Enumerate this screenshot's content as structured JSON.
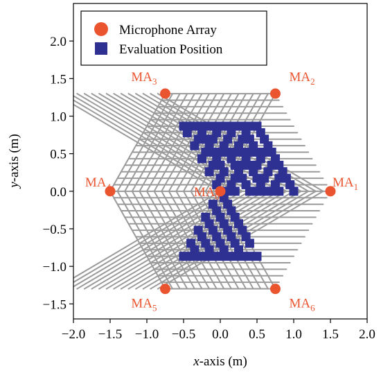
{
  "chart_data": {
    "type": "scatter",
    "xlabel": {
      "italic": "x",
      "rest": "-axis (m)"
    },
    "ylabel": {
      "italic": "y",
      "rest": "-axis (m)"
    },
    "xlim": [
      -2.0,
      2.0
    ],
    "ylim": [
      -1.7,
      2.5
    ],
    "xticks": [
      -2.0,
      -1.5,
      -1.0,
      -0.5,
      0.0,
      0.5,
      1.0,
      1.5,
      2.0
    ],
    "yticks": [
      -1.5,
      -1.0,
      -0.5,
      0.0,
      0.5,
      1.0,
      1.5,
      2.0
    ],
    "tick_labels_x": [
      "−2.0",
      "−1.5",
      "−1.0",
      "−0.5",
      "0.0",
      "0.5",
      "1.0",
      "1.5",
      "2.0"
    ],
    "tick_labels_y": [
      "−1.5",
      "−1.0",
      "−0.5",
      "0.0",
      "0.5",
      "1.0",
      "1.5",
      "2.0"
    ],
    "grid": {
      "type": "triangular-hexagon",
      "spacing": 0.1,
      "extent": 1.5
    },
    "legend": {
      "placement": "upper-left",
      "entries": [
        {
          "label": "Microphone Array",
          "marker": "circle",
          "color": "#ea5530"
        },
        {
          "label": "Evaluation Position",
          "marker": "square",
          "color": "#2e3192"
        }
      ]
    },
    "series": [
      {
        "name": "Microphone Array",
        "marker": "circle",
        "color": "#ea5530",
        "points": [
          {
            "x": 1.5,
            "y": 0.0,
            "label": "MA",
            "sub": "1",
            "anchor": "right"
          },
          {
            "x": 0.75,
            "y": 1.3,
            "label": "MA",
            "sub": "2",
            "anchor": "upper-right"
          },
          {
            "x": -0.75,
            "y": 1.3,
            "label": "MA",
            "sub": "3",
            "anchor": "upper-left"
          },
          {
            "x": -1.5,
            "y": 0.0,
            "label": "MA",
            "sub": "4",
            "anchor": "left"
          },
          {
            "x": -0.75,
            "y": -1.3,
            "label": "MA",
            "sub": "5",
            "anchor": "lower-left"
          },
          {
            "x": 0.75,
            "y": -1.3,
            "label": "MA",
            "sub": "6",
            "anchor": "lower-right"
          },
          {
            "x": 0.0,
            "y": 0.0,
            "label": "MA",
            "sub": "0",
            "anchor": "left"
          }
        ]
      },
      {
        "name": "Evaluation Position",
        "marker": "square",
        "color": "#2e3192",
        "points": [
          {
            "x": -0.5,
            "y": 0.866
          },
          {
            "x": -0.4,
            "y": 0.866
          },
          {
            "x": -0.3,
            "y": 0.866
          },
          {
            "x": -0.2,
            "y": 0.866
          },
          {
            "x": -0.1,
            "y": 0.866
          },
          {
            "x": 0.0,
            "y": 0.866
          },
          {
            "x": 0.1,
            "y": 0.866
          },
          {
            "x": 0.2,
            "y": 0.866
          },
          {
            "x": 0.3,
            "y": 0.866
          },
          {
            "x": 0.4,
            "y": 0.866
          },
          {
            "x": 0.5,
            "y": 0.866
          },
          {
            "x": -0.45,
            "y": 0.779
          },
          {
            "x": -0.25,
            "y": 0.779
          },
          {
            "x": -0.05,
            "y": 0.779
          },
          {
            "x": 0.15,
            "y": 0.779
          },
          {
            "x": 0.35,
            "y": 0.779
          },
          {
            "x": 0.55,
            "y": 0.779
          },
          {
            "x": -0.3,
            "y": 0.693
          },
          {
            "x": -0.2,
            "y": 0.693
          },
          {
            "x": -0.1,
            "y": 0.693
          },
          {
            "x": 0.1,
            "y": 0.693
          },
          {
            "x": 0.3,
            "y": 0.693
          },
          {
            "x": 0.4,
            "y": 0.693
          },
          {
            "x": 0.6,
            "y": 0.693
          },
          {
            "x": -0.35,
            "y": 0.606
          },
          {
            "x": -0.15,
            "y": 0.606
          },
          {
            "x": 0.05,
            "y": 0.606
          },
          {
            "x": 0.25,
            "y": 0.606
          },
          {
            "x": 0.45,
            "y": 0.606
          },
          {
            "x": 0.65,
            "y": 0.606
          },
          {
            "x": -0.2,
            "y": 0.52
          },
          {
            "x": -0.1,
            "y": 0.52
          },
          {
            "x": 0.0,
            "y": 0.52
          },
          {
            "x": 0.1,
            "y": 0.52
          },
          {
            "x": 0.2,
            "y": 0.52
          },
          {
            "x": 0.3,
            "y": 0.52
          },
          {
            "x": 0.4,
            "y": 0.52
          },
          {
            "x": 0.5,
            "y": 0.52
          },
          {
            "x": 0.6,
            "y": 0.52
          },
          {
            "x": 0.7,
            "y": 0.52
          },
          {
            "x": -0.25,
            "y": 0.433
          },
          {
            "x": -0.05,
            "y": 0.433
          },
          {
            "x": 0.15,
            "y": 0.433
          },
          {
            "x": 0.35,
            "y": 0.433
          },
          {
            "x": 0.55,
            "y": 0.433
          },
          {
            "x": 0.75,
            "y": 0.433
          },
          {
            "x": -0.1,
            "y": 0.346
          },
          {
            "x": 0.0,
            "y": 0.346
          },
          {
            "x": 0.2,
            "y": 0.346
          },
          {
            "x": 0.3,
            "y": 0.346
          },
          {
            "x": 0.4,
            "y": 0.346
          },
          {
            "x": 0.5,
            "y": 0.346
          },
          {
            "x": 0.7,
            "y": 0.346
          },
          {
            "x": 0.8,
            "y": 0.346
          },
          {
            "x": -0.15,
            "y": 0.26
          },
          {
            "x": 0.05,
            "y": 0.26
          },
          {
            "x": 0.25,
            "y": 0.26
          },
          {
            "x": 0.45,
            "y": 0.26
          },
          {
            "x": 0.65,
            "y": 0.26
          },
          {
            "x": 0.85,
            "y": 0.26
          },
          {
            "x": 0.0,
            "y": 0.173
          },
          {
            "x": 0.2,
            "y": 0.173
          },
          {
            "x": 0.3,
            "y": 0.173
          },
          {
            "x": 0.5,
            "y": 0.173
          },
          {
            "x": 0.6,
            "y": 0.173
          },
          {
            "x": 0.8,
            "y": 0.173
          },
          {
            "x": 0.9,
            "y": 0.173
          },
          {
            "x": -0.05,
            "y": 0.087
          },
          {
            "x": 0.15,
            "y": 0.087
          },
          {
            "x": 0.35,
            "y": 0.087
          },
          {
            "x": 0.55,
            "y": 0.087
          },
          {
            "x": 0.75,
            "y": 0.087
          },
          {
            "x": 0.95,
            "y": 0.087
          },
          {
            "x": 0.1,
            "y": 0.0
          },
          {
            "x": 0.2,
            "y": 0.0
          },
          {
            "x": 0.4,
            "y": 0.0
          },
          {
            "x": 0.5,
            "y": 0.0
          },
          {
            "x": 0.6,
            "y": 0.0
          },
          {
            "x": 0.7,
            "y": 0.0
          },
          {
            "x": 0.8,
            "y": 0.0
          },
          {
            "x": 1.0,
            "y": 0.0
          },
          {
            "x": 0.05,
            "y": -0.087
          },
          {
            "x": -0.1,
            "y": -0.173
          },
          {
            "x": 0.1,
            "y": -0.173
          },
          {
            "x": -0.05,
            "y": -0.26
          },
          {
            "x": 0.15,
            "y": -0.26
          },
          {
            "x": -0.2,
            "y": -0.346
          },
          {
            "x": 0.0,
            "y": -0.346
          },
          {
            "x": 0.2,
            "y": -0.346
          },
          {
            "x": -0.15,
            "y": -0.433
          },
          {
            "x": 0.05,
            "y": -0.433
          },
          {
            "x": 0.25,
            "y": -0.433
          },
          {
            "x": -0.3,
            "y": -0.52
          },
          {
            "x": -0.1,
            "y": -0.52
          },
          {
            "x": 0.1,
            "y": -0.52
          },
          {
            "x": 0.3,
            "y": -0.52
          },
          {
            "x": -0.25,
            "y": -0.606
          },
          {
            "x": -0.05,
            "y": -0.606
          },
          {
            "x": 0.15,
            "y": -0.606
          },
          {
            "x": 0.35,
            "y": -0.606
          },
          {
            "x": -0.4,
            "y": -0.693
          },
          {
            "x": -0.2,
            "y": -0.693
          },
          {
            "x": 0.0,
            "y": -0.693
          },
          {
            "x": 0.2,
            "y": -0.693
          },
          {
            "x": 0.4,
            "y": -0.693
          },
          {
            "x": -0.35,
            "y": -0.779
          },
          {
            "x": -0.15,
            "y": -0.779
          },
          {
            "x": 0.05,
            "y": -0.779
          },
          {
            "x": 0.25,
            "y": -0.779
          },
          {
            "x": -0.5,
            "y": -0.866
          },
          {
            "x": -0.4,
            "y": -0.866
          },
          {
            "x": -0.3,
            "y": -0.866
          },
          {
            "x": -0.2,
            "y": -0.866
          },
          {
            "x": -0.1,
            "y": -0.866
          },
          {
            "x": 0.0,
            "y": -0.866
          },
          {
            "x": 0.1,
            "y": -0.866
          },
          {
            "x": 0.2,
            "y": -0.866
          },
          {
            "x": 0.3,
            "y": -0.866
          },
          {
            "x": 0.4,
            "y": -0.866
          },
          {
            "x": 0.5,
            "y": -0.866
          }
        ]
      }
    ]
  }
}
